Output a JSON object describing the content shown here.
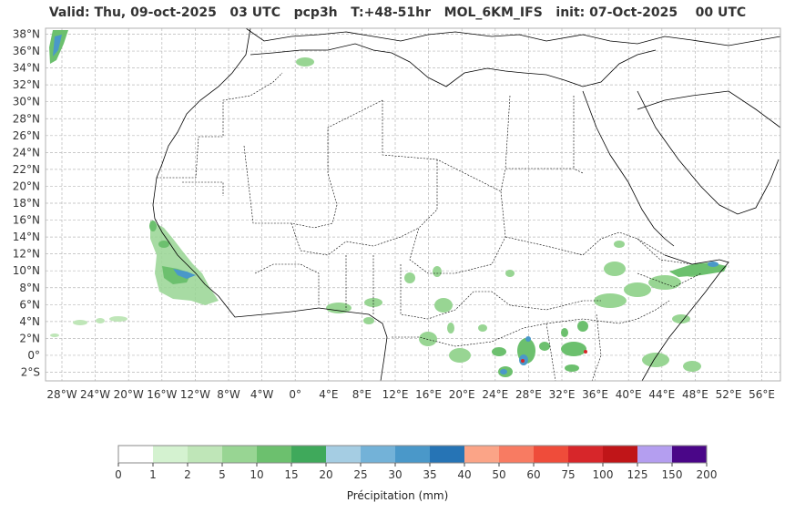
{
  "title": "Valid: Thu, 09-oct-2025   03 UTC   pcp3h   T:+48-51hr   MOL_6KM_IFS   init: 07-Oct-2025    00 UTC",
  "lat_ticks": [
    "38°N",
    "36°N",
    "34°N",
    "32°N",
    "30°N",
    "28°N",
    "26°N",
    "24°N",
    "22°N",
    "20°N",
    "18°N",
    "16°N",
    "14°N",
    "12°N",
    "10°N",
    "8°N",
    "6°N",
    "4°N",
    "2°N",
    "0°",
    "2°S"
  ],
  "lon_ticks": [
    "28°W",
    "24°W",
    "20°W",
    "16°W",
    "12°W",
    "8°W",
    "4°W",
    "0°",
    "4°E",
    "8°E",
    "12°E",
    "16°E",
    "20°E",
    "24°E",
    "28°E",
    "32°E",
    "36°E",
    "40°E",
    "44°E",
    "48°E",
    "52°E",
    "56°E"
  ],
  "colorbar": {
    "label": "Précipitation (mm)",
    "ticks": [
      "0",
      "1",
      "2",
      "5",
      "10",
      "15",
      "20",
      "25",
      "30",
      "35",
      "40",
      "50",
      "60",
      "75",
      "100",
      "125",
      "150",
      "200"
    ],
    "colors": [
      "#ffffff",
      "#d4f2d0",
      "#bfe6b8",
      "#98d593",
      "#6cc06e",
      "#3fa95b",
      "#a5cde3",
      "#73b2d8",
      "#4a98c9",
      "#2674b5",
      "#fba487",
      "#f87b62",
      "#ef4c3a",
      "#d7262a",
      "#c01518",
      "#b49ef0",
      "#4a0688"
    ]
  },
  "colors": {
    "border": "#000000",
    "grid": "#b0b0b0",
    "frame": "#b0b0b0"
  }
}
